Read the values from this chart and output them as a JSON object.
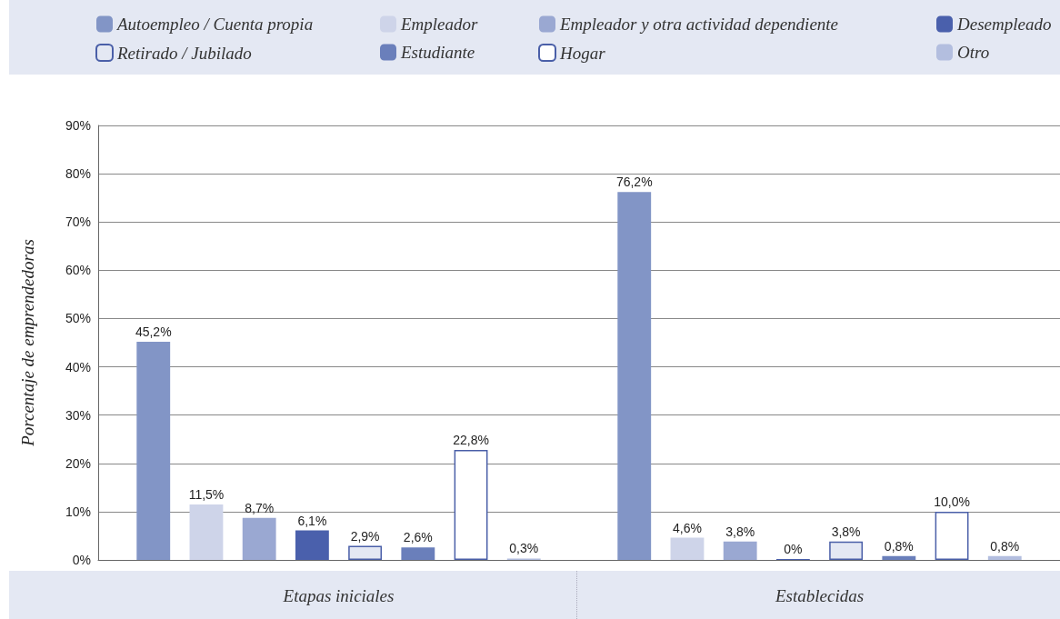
{
  "chart_data": {
    "type": "bar",
    "ylabel": "Porcentaje de emprendedoras",
    "categories": [
      "Etapas iniciales",
      "Establecidas"
    ],
    "series": [
      {
        "name": "Autoempleo / Cuenta propia",
        "color": "#8295c6",
        "values": [
          45.2,
          76.2
        ],
        "value_labels": [
          "45,2%",
          "76,2%"
        ]
      },
      {
        "name": "Empleador",
        "color": "#ced4e9",
        "values": [
          11.5,
          4.6
        ],
        "value_labels": [
          "11,5%",
          "4,6%"
        ]
      },
      {
        "name": "Empleador y otra actividad dependiente",
        "color": "#9aa8d2",
        "values": [
          8.7,
          3.8
        ],
        "value_labels": [
          "8,7%",
          "3,8%"
        ]
      },
      {
        "name": "Desempleado",
        "color": "#4a60ac",
        "values": [
          6.1,
          0
        ],
        "value_labels": [
          "6,1%",
          "0%"
        ]
      },
      {
        "name": "Retirado / Jubilado",
        "color": "#e4e8f3",
        "values": [
          2.9,
          3.8
        ],
        "value_labels": [
          "2,9%",
          "3,8%"
        ]
      },
      {
        "name": "Estudiante",
        "color": "#6a7fbb",
        "values": [
          2.6,
          0.8
        ],
        "value_labels": [
          "2,6%",
          "0,8%"
        ]
      },
      {
        "name": "Hogar",
        "color": "#ffffff",
        "values": [
          22.8,
          10.0
        ],
        "value_labels": [
          "22,8%",
          "10,0%"
        ]
      },
      {
        "name": "Otro",
        "color": "#b3bedf",
        "values": [
          0.3,
          0.8
        ],
        "value_labels": [
          "0,3%",
          "0,8%"
        ]
      }
    ],
    "ylim": [
      0,
      90
    ],
    "yticks": [
      {
        "value": 0,
        "label": "0%"
      },
      {
        "value": 10,
        "label": "10%"
      },
      {
        "value": 20,
        "label": "20%"
      },
      {
        "value": 30,
        "label": "30%"
      },
      {
        "value": 40,
        "label": "40%"
      },
      {
        "value": 50,
        "label": "50%"
      },
      {
        "value": 60,
        "label": "60%"
      },
      {
        "value": 70,
        "label": "70%"
      },
      {
        "value": 80,
        "label": "80%"
      },
      {
        "value": 90,
        "label": "90%"
      }
    ],
    "grid": "y",
    "legend": "top"
  }
}
